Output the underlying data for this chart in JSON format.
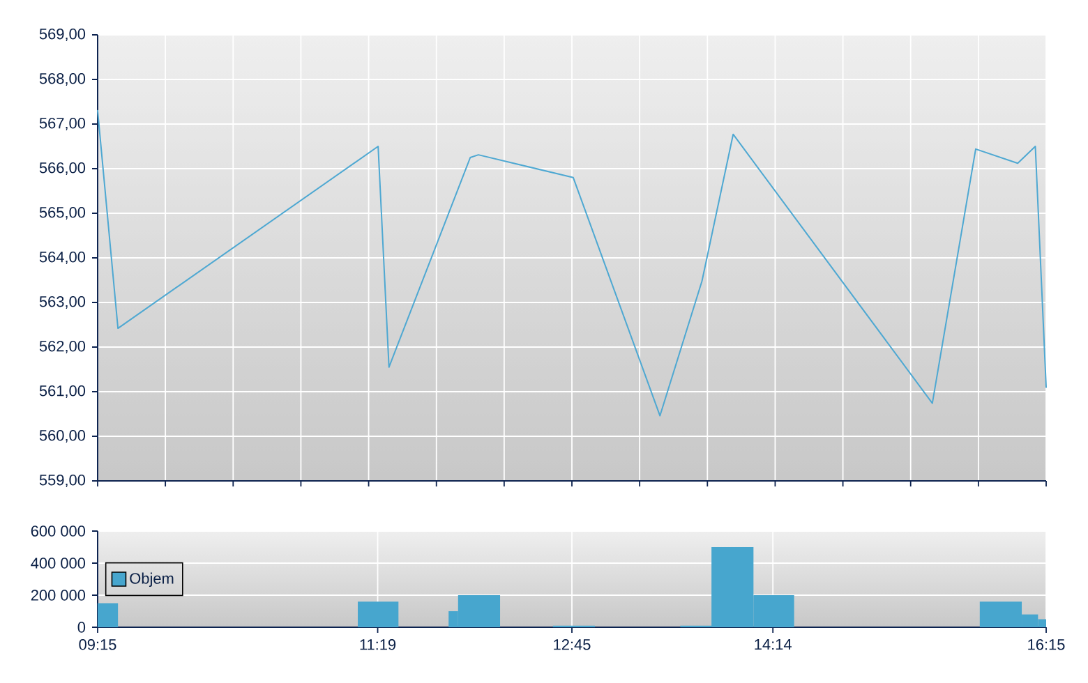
{
  "chart_data": [
    {
      "type": "line",
      "x": [
        9.25,
        9.4,
        11.32,
        11.4,
        12.0,
        12.06,
        12.76,
        13.4,
        13.71,
        13.94,
        15.41,
        15.73,
        16.04,
        16.17,
        16.25
      ],
      "values": [
        567.3,
        562.42,
        566.5,
        561.55,
        566.25,
        566.31,
        565.8,
        560.46,
        563.48,
        566.77,
        560.74,
        566.44,
        566.12,
        566.5,
        561.1
      ],
      "color": "#4ea8d2",
      "xlim": [
        9.25,
        16.25
      ],
      "xticks": [
        9.25,
        9.75,
        10.25,
        10.75,
        11.25,
        11.75,
        12.25,
        12.75,
        13.25,
        13.75,
        14.25,
        14.75,
        15.25,
        15.75,
        16.25
      ],
      "ylim": [
        559,
        569
      ],
      "yticks": [
        {
          "value": 559,
          "label": "559,00"
        },
        {
          "value": 560,
          "label": "560,00"
        },
        {
          "value": 561,
          "label": "561,00"
        },
        {
          "value": 562,
          "label": "562,00"
        },
        {
          "value": 563,
          "label": "563,00"
        },
        {
          "value": 564,
          "label": "564,00"
        },
        {
          "value": 565,
          "label": "565,00"
        },
        {
          "value": 566,
          "label": "566,00"
        },
        {
          "value": 567,
          "label": "567,00"
        },
        {
          "value": 568,
          "label": "568,00"
        },
        {
          "value": 569,
          "label": "569,00"
        }
      ],
      "grid": true,
      "tick_labels": "y"
    },
    {
      "type": "histogram",
      "bins": [
        9.25,
        9.4,
        11.17,
        11.47,
        11.84,
        11.91,
        12.22,
        12.61,
        12.92,
        13.55,
        13.78,
        14.09,
        14.39,
        15.76,
        16.07,
        16.19,
        16.25
      ],
      "series": [
        {
          "name": "Objem",
          "color": "#47a6ce",
          "values": [
            150000,
            null,
            160000,
            null,
            100000,
            200000,
            null,
            10000,
            null,
            10000,
            500000,
            200000,
            null,
            160000,
            80000,
            50000
          ]
        }
      ],
      "xlim": [
        9.25,
        16.25
      ],
      "xticks": [
        {
          "value": 9.25,
          "label": "09:15"
        },
        {
          "value": 11.3167,
          "label": "11:19"
        },
        {
          "value": 12.75,
          "label": "12:45"
        },
        {
          "value": 14.2333,
          "label": "14:14"
        },
        {
          "value": 16.25,
          "label": "16:15"
        }
      ],
      "ylim": [
        0,
        600000
      ],
      "yticks": [
        0,
        {
          "value": 200000,
          "label": "200 000"
        },
        {
          "value": 400000,
          "label": "400 000"
        },
        {
          "value": 600000,
          "label": "600 000"
        }
      ],
      "grid": true,
      "legend": "left"
    }
  ]
}
